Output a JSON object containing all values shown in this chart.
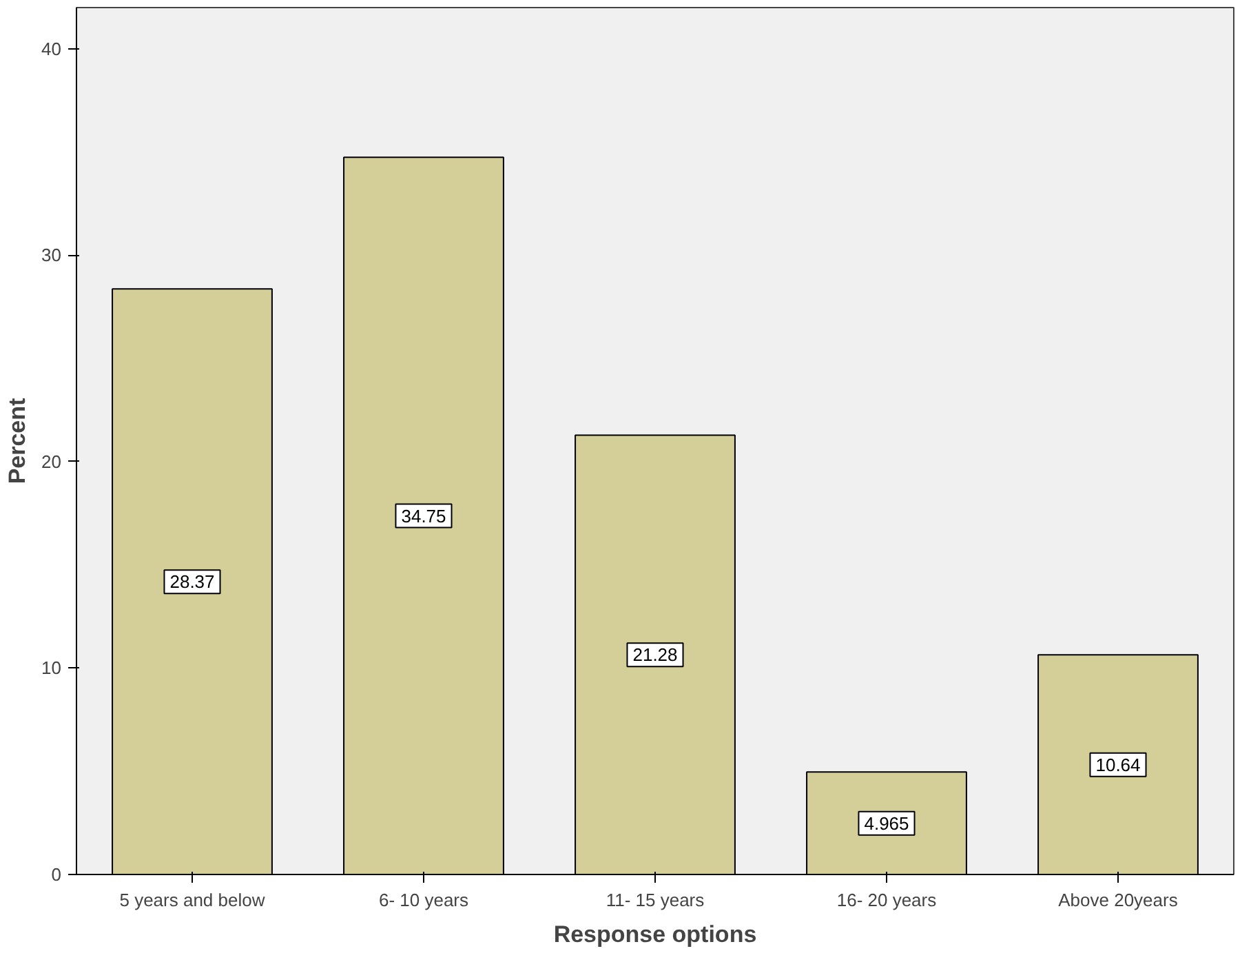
{
  "chart_data": {
    "type": "bar",
    "xlabel": "Response options",
    "ylabel": "Percent",
    "categories": [
      "5 years and below",
      "6- 10 years",
      "11- 15 years",
      "16- 20 years",
      "Above 20years"
    ],
    "values": [
      28.37,
      34.75,
      21.28,
      4.965,
      10.64
    ],
    "color": "#d4cf98",
    "ylim": [
      0,
      42
    ],
    "yticks": [
      0,
      10,
      20,
      30,
      40
    ],
    "grid": false,
    "data_labels": true
  }
}
